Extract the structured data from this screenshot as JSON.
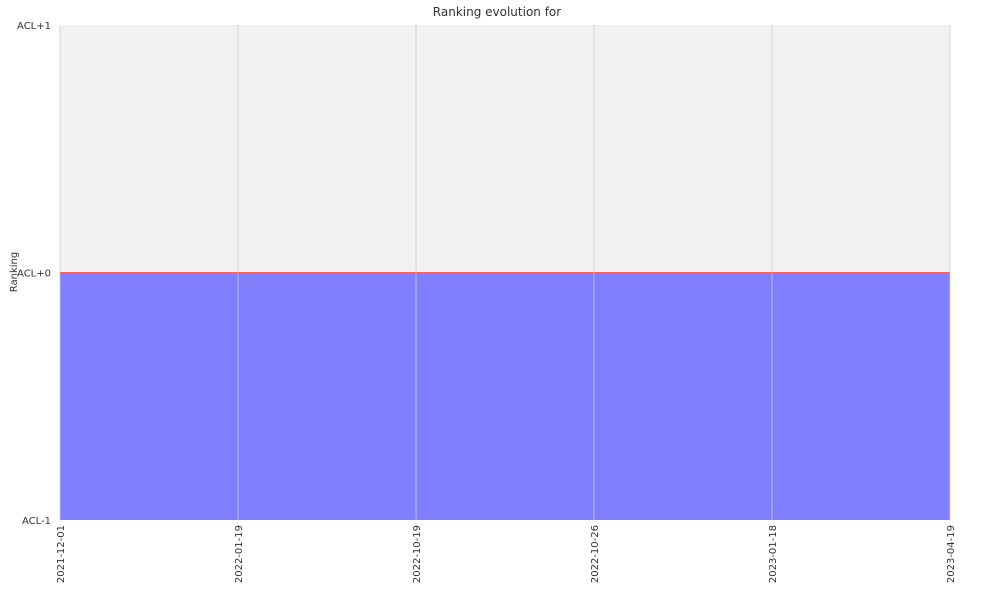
{
  "chart_data": {
    "type": "area",
    "title": "Ranking evolution for",
    "ylabel": "Ranking",
    "xlabel": "",
    "x": [
      "2021-12-01",
      "2022-01-19",
      "2022-10-19",
      "2022-10-26",
      "2023-01-18",
      "2023-04-19"
    ],
    "y_ticks": [
      "ACL-1",
      "ACL+0",
      "ACL+1"
    ],
    "ylim": [
      -1,
      1
    ],
    "series": [
      {
        "values": [
          0,
          0,
          0,
          0,
          0,
          0
        ]
      }
    ],
    "x_spacing": "categorical",
    "grid": "vertical",
    "colors": {
      "plot_background": "#f2f2f2",
      "fill": "#8080ff",
      "line": "#ff6060",
      "grid": "#cccccc"
    }
  }
}
